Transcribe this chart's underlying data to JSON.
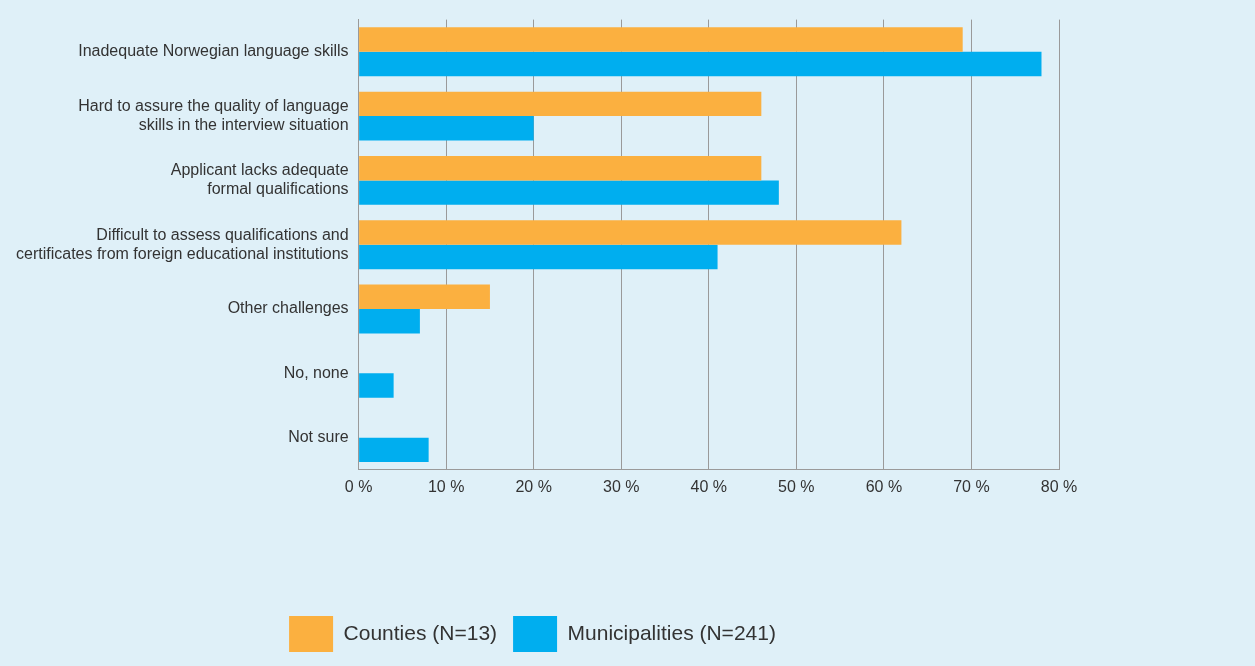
{
  "chart_data": {
    "type": "bar",
    "orientation": "horizontal",
    "categories": [
      "Inadequate Norwegian language skills",
      "Hard to assure the quality of language\nskills in the interview situation",
      "Applicant lacks adequate\nformal qualifications",
      "Difficult to assess qualifications and\ncertificates from foreign educational institutions",
      "Other challenges",
      "No, none",
      "Not sure"
    ],
    "series": [
      {
        "name": "Counties (N=13)",
        "color": "#fbb040",
        "values": [
          69,
          46,
          46,
          62,
          15,
          0,
          0
        ]
      },
      {
        "name": "Municipalities (N=241)",
        "color": "#00aeef",
        "values": [
          78,
          20,
          48,
          41,
          7,
          4,
          8
        ]
      }
    ],
    "xlim": [
      0,
      80
    ],
    "xticks": [
      {
        "value": 0,
        "label": "0 %"
      },
      {
        "value": 10,
        "label": "10 %"
      },
      {
        "value": 20,
        "label": "20 %"
      },
      {
        "value": 30,
        "label": "30 %"
      },
      {
        "value": 40,
        "label": "40 %"
      },
      {
        "value": 50,
        "label": "50 %"
      },
      {
        "value": 60,
        "label": "60 %"
      },
      {
        "value": 70,
        "label": "70 %"
      },
      {
        "value": 80,
        "label": "80 %"
      }
    ],
    "grid": "x",
    "legend": "bottom"
  }
}
